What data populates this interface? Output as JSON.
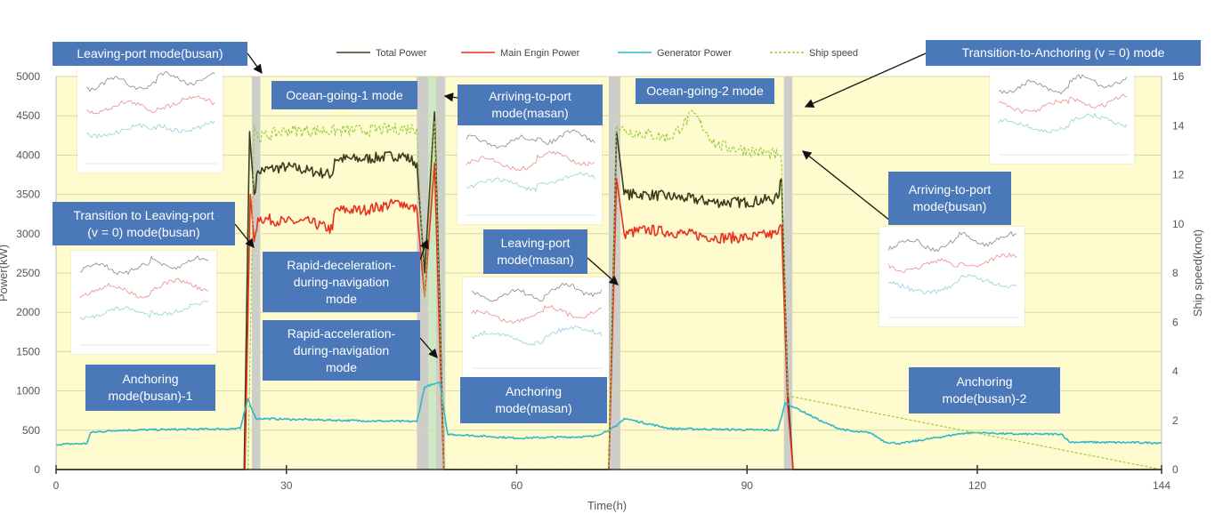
{
  "chart_data": {
    "type": "line",
    "xlabel": "Time(h)",
    "ylabel": "Power(kW)",
    "ylabel_right": "Ship speed(knot)",
    "xlim": [
      0,
      144
    ],
    "ylim": [
      0,
      5000
    ],
    "ylim_right": [
      0,
      16
    ],
    "x_ticks": [
      0,
      30,
      60,
      90,
      120,
      144
    ],
    "y_ticks": [
      0,
      500,
      1000,
      1500,
      2000,
      2500,
      3000,
      3500,
      4000,
      4500,
      5000
    ],
    "y_ticks_right": [
      0,
      2,
      4,
      6,
      8,
      10,
      12,
      14,
      16
    ],
    "grid": "horizontal",
    "legend_position": "top",
    "series": [
      {
        "name": "Total Power",
        "color": "#3b3a1c",
        "x": [
          0,
          24.5,
          25.2,
          25.8,
          26.3,
          30,
          33,
          36,
          36.3,
          40,
          45,
          47,
          48,
          49.3,
          50,
          50.5,
          70,
          72,
          73,
          74,
          77,
          82,
          86,
          90,
          94,
          94.5,
          95.3,
          96,
          144
        ],
        "y": [
          0,
          0,
          4300,
          3500,
          3800,
          3850,
          3800,
          3750,
          3950,
          3950,
          4000,
          3900,
          2500,
          4550,
          2000,
          0,
          0,
          0,
          4300,
          3500,
          3500,
          3450,
          3400,
          3400,
          3450,
          3700,
          1000,
          0,
          0
        ]
      },
      {
        "name": "Main Engin Power",
        "color": "#e8321e",
        "x": [
          0,
          24.6,
          25.3,
          25.8,
          26.3,
          30,
          33,
          36,
          36.3,
          40,
          45,
          47,
          48,
          49.3,
          50,
          50.5,
          70,
          72,
          73,
          74,
          77,
          82,
          86,
          90,
          94,
          94.5,
          95.3,
          96,
          144
        ],
        "y": [
          0,
          0,
          3500,
          2900,
          3200,
          3150,
          3150,
          3050,
          3300,
          3300,
          3400,
          3300,
          2200,
          3900,
          1500,
          0,
          0,
          0,
          3700,
          3000,
          3050,
          3000,
          2950,
          2950,
          3000,
          3100,
          800,
          0,
          0
        ]
      },
      {
        "name": "Generator Power",
        "color": "#2fb8c6",
        "x": [
          0,
          4,
          4.5,
          8,
          24,
          25,
          26,
          30,
          40,
          47,
          48,
          49,
          50,
          51,
          60,
          70,
          72,
          73,
          74,
          80,
          94,
          95,
          96,
          100,
          102,
          104,
          106,
          108,
          110,
          118,
          120,
          125,
          131,
          132,
          144
        ],
        "y": [
          320,
          330,
          470,
          500,
          520,
          900,
          650,
          640,
          620,
          610,
          1050,
          1080,
          1100,
          450,
          400,
          420,
          500,
          550,
          650,
          520,
          500,
          850,
          800,
          600,
          520,
          480,
          470,
          350,
          330,
          460,
          470,
          450,
          450,
          350,
          340
        ]
      },
      {
        "name": "Ship speed",
        "color": "#9ccc44",
        "axis": "right",
        "x": [
          0,
          25,
          25.8,
          26.3,
          30,
          40,
          47,
          48,
          49.3,
          50,
          50.5,
          72,
          73,
          74,
          80,
          83,
          86,
          90,
          94,
          94.5,
          95.3,
          144
        ],
        "y": [
          0,
          0,
          14,
          13.5,
          13.8,
          13.8,
          13.9,
          7,
          14.2,
          6,
          0,
          0,
          14,
          13.8,
          13.5,
          14.5,
          13.2,
          13.0,
          12.8,
          12.5,
          3,
          0
        ]
      }
    ],
    "shaded_bands": [
      {
        "x": [
          25.5,
          26.6
        ],
        "color": "#c8c8c8"
      },
      {
        "x": [
          47.0,
          48.5
        ],
        "color": "#c8c8c8"
      },
      {
        "x": [
          48.5,
          49.5
        ],
        "color": "#c8e6c0"
      },
      {
        "x": [
          49.5,
          50.7
        ],
        "color": "#c8c8c8"
      },
      {
        "x": [
          72.0,
          73.5
        ],
        "color": "#c8c8c8"
      },
      {
        "x": [
          94.8,
          95.9
        ],
        "color": "#c8c8c8"
      }
    ],
    "annotations": [
      {
        "id": "leaving-port-busan",
        "text": "Leaving-port  mode(busan)"
      },
      {
        "id": "ocean-going-1",
        "text": "Ocean-going-1 mode"
      },
      {
        "id": "arriving-masan",
        "text": "Arriving-to-port\nmode(masan)"
      },
      {
        "id": "ocean-going-2",
        "text": "Ocean-going-2 mode"
      },
      {
        "id": "transition-anchoring",
        "text": "Transition-to-Anchoring (v = 0) mode"
      },
      {
        "id": "transition-leaving-busan",
        "text": "Transition to Leaving-port\n(v = 0) mode(busan)"
      },
      {
        "id": "rapid-deceleration",
        "text": "Rapid-deceleration-\nduring-navigation\nmode"
      },
      {
        "id": "rapid-acceleration",
        "text": "Rapid-acceleration-\nduring-navigation\nmode"
      },
      {
        "id": "leaving-masan",
        "text": "Leaving-port\nmode(masan)"
      },
      {
        "id": "arriving-busan",
        "text": "Arriving-to-port\nmode(busan)"
      },
      {
        "id": "anchoring-busan-1",
        "text": "Anchoring\nmode(busan)-1"
      },
      {
        "id": "anchoring-masan",
        "text": "Anchoring\nmode(masan)"
      },
      {
        "id": "anchoring-busan-2",
        "text": "Anchoring\nmode(busan)-2"
      }
    ]
  }
}
